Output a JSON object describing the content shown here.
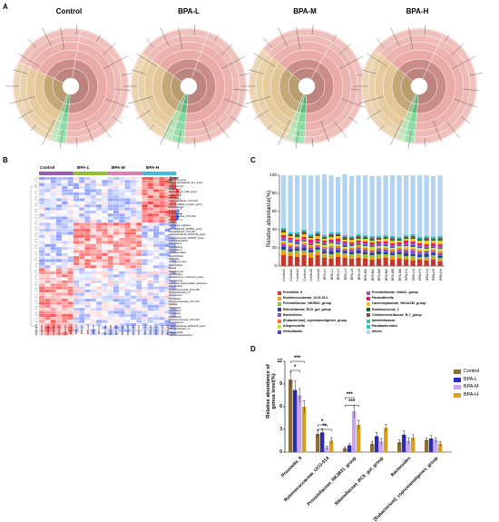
{
  "panels": {
    "a": {
      "letter": "A",
      "titles": [
        "Control",
        "BPA-L",
        "BPA-M",
        "BPA-H"
      ]
    },
    "b": {
      "letter": "B",
      "groups": [
        "Control",
        "BPA-L",
        "BPA-M",
        "BPA-H"
      ],
      "group_colors": [
        "#9b59b6",
        "#8fbf3f",
        "#e07bb5",
        "#4fb3d9"
      ],
      "legend_title": "Group",
      "scale_ticks": [
        "3",
        "2",
        "1",
        "0",
        "-1",
        "-2",
        "-3"
      ],
      "genera": [
        "NK4A214_group",
        "Christensenellaceae_R-7_group",
        "Ochrobactrum",
        "Proteus",
        "[Eubacterium]_hallii_group",
        "Holdemania",
        "Rikenella",
        "Lachnospiraceae_UCG-010",
        "[Ruminococcus]_torques_group",
        "Butyricimonas",
        "Roseburia",
        "Enterobacter",
        "Prevotellaceae_UCG-003",
        "Bilophila",
        "Proteus",
        "uncultured_organism",
        "Prevotellaceae_NK3B31_group",
        "Prevotellaceae_UCG-001",
        "Lachnospiraceae_NK4A136_group",
        "Lachnospiraceae_ND3007_group",
        "Lachnoclostridium",
        "Allobaculum",
        "Lactobacillus",
        "Prevotella_9",
        "Parabacteroides",
        "Gordonibacter",
        "Veillonella",
        "Ambiguous_taxa",
        "Haemophilus",
        "Blautia",
        "Streptococcus",
        "Lactobacillus",
        "[Eubacterium]_ventriosum_group",
        "Coprococcus",
        "uncultured_Bacteroidales_bacterium",
        "Desulfovibrio",
        "Ruminococcaceae_UCG-005",
        "Ruminiclostridium_9",
        "Peptococcus",
        "Parvibacter",
        "Ruminococcaceae_UCG-014",
        "Alistipes",
        "Odoribacter",
        "Anaerofilum",
        "Turicibacter",
        "Papillibacter",
        "Ruminococcaceae_UCG-009",
        "Anaerotignum",
        "Lachnospiraceae_NK4A136_group",
        "Ruminiclostridium_5",
        "Alloprevotella",
        "Lachnoanaerobaculum"
      ],
      "samples": [
        "Control1",
        "Control2",
        "Control3",
        "Control4",
        "Control5",
        "Control6",
        "BPA-L1",
        "BPA-L2",
        "BPA-L3",
        "BPA-L4",
        "BPA-L5",
        "BPA-L6",
        "BPA-M1",
        "BPA-M2",
        "BPA-M3",
        "BPA-M4",
        "BPA-M5",
        "BPA-M6",
        "BPA-H1",
        "BPA-H2",
        "BPA-H3",
        "BPA-H4",
        "BPA-H5",
        "BPA-H6"
      ]
    },
    "c": {
      "letter": "C",
      "ylabel": "Relative abundance(%)",
      "yticks": [
        "0",
        "20",
        "40",
        "60",
        "80",
        "100"
      ],
      "samples": [
        "Control1",
        "Control2",
        "Control3",
        "Control4",
        "Control5",
        "Control6",
        "BPA-L1",
        "BPA-L2",
        "BPA-L3",
        "BPA-L4",
        "BPA-L5",
        "BPA-L6",
        "BPA-M1",
        "BPA-M2",
        "BPA-M3",
        "BPA-M4",
        "BPA-M5",
        "BPA-M6",
        "BPA-H1",
        "BPA-H2",
        "BPA-H3",
        "BPA-H4",
        "BPA-H5",
        "BPA-H6"
      ],
      "legend": [
        {
          "name": "Prevotella_9",
          "color": "#c0392b"
        },
        {
          "name": "Prevotellaceae_Ga6A1_group",
          "color": "#9b59b6"
        },
        {
          "name": "Ruminococcaceae_UCG-014",
          "color": "#f39c12"
        },
        {
          "name": "Parasutterella",
          "color": "#e91e63"
        },
        {
          "name": "Prevotellaceae_NK3B31_group",
          "color": "#8bc34a"
        },
        {
          "name": "Lachnospiraceae_NK4A136_group",
          "color": "#f1c40f"
        },
        {
          "name": "Rikenellaceae_RC9_gut_group",
          "color": "#2c3e90"
        },
        {
          "name": "Ruminococcus_1",
          "color": "#1a5e20"
        },
        {
          "name": "Bacteroides",
          "color": "#7e57c2"
        },
        {
          "name": "Christensenellaceae_R-7_group",
          "color": "#795548"
        },
        {
          "name": "[Eubacterium]_coprostanoligenes_group",
          "color": "#ff7043"
        },
        {
          "name": "Intestinimonas",
          "color": "#4db6ac"
        },
        {
          "name": "Alloprevotella",
          "color": "#cddc39"
        },
        {
          "name": "Parabacteroides",
          "color": "#26c6da"
        },
        {
          "name": "Helicobacter",
          "color": "#3f51b5"
        },
        {
          "name": "others",
          "color": "#b3d4f0"
        }
      ]
    },
    "d": {
      "letter": "D",
      "ylabel": "Relative abundance of genus level(%)",
      "yticks": [
        "0",
        "3",
        "6",
        "9",
        "12"
      ],
      "categories": [
        "Prevotella_9",
        "Ruminococcaceae_UCG-014",
        "Prevotellaceae_NK3B31_group",
        "Rikenellaceae_RC9_gut_group",
        "Bacteroides",
        "[Eubacterium]_coprostanoligenes_group"
      ],
      "legend": [
        {
          "name": "Control",
          "color": "#8b6d3a"
        },
        {
          "name": "BPA-L",
          "color": "#2b2bb5"
        },
        {
          "name": "BPA-M",
          "color": "#c7a6e8"
        },
        {
          "name": "BPA-H",
          "color": "#d9a21e"
        }
      ],
      "sig": [
        {
          "text": "***"
        },
        {
          "text": "*"
        },
        {
          "text": "*"
        },
        {
          "text": "**"
        },
        {
          "text": "***"
        },
        {
          "text": "***"
        }
      ]
    }
  },
  "chart_data": [
    {
      "type": "bar",
      "stacked": true,
      "ylabel": "Relative abundance(%)",
      "ylim": [
        0,
        100
      ],
      "categories": [
        "Control1",
        "Control2",
        "Control3",
        "Control4",
        "Control5",
        "Control6",
        "BPA-L1",
        "BPA-L2",
        "BPA-L3",
        "BPA-L4",
        "BPA-L5",
        "BPA-L6",
        "BPA-M1",
        "BPA-M2",
        "BPA-M3",
        "BPA-M4",
        "BPA-M5",
        "BPA-M6",
        "BPA-H1",
        "BPA-H2",
        "BPA-H3",
        "BPA-H4",
        "BPA-H5",
        "BPA-H6"
      ],
      "series": [
        {
          "name": "Prevotella_9",
          "values": [
            12,
            11,
            10,
            12,
            9,
            12,
            9,
            8,
            10,
            9,
            8,
            9,
            8,
            7,
            8,
            9,
            7,
            8,
            7,
            6,
            7,
            6,
            7,
            5
          ]
        },
        {
          "name": "Ruminococcaceae_UCG-014",
          "values": [
            4,
            3,
            4,
            3,
            4,
            3,
            3,
            2,
            3,
            3,
            2,
            3,
            2,
            3,
            2,
            2,
            3,
            2,
            2,
            2,
            1,
            2,
            2,
            2
          ]
        },
        {
          "name": "Prevotellaceae_NK3B31_group",
          "values": [
            2,
            2,
            3,
            2,
            2,
            3,
            2,
            3,
            2,
            2,
            3,
            2,
            3,
            2,
            3,
            2,
            2,
            3,
            2,
            3,
            2,
            2,
            3,
            2
          ]
        },
        {
          "name": "Rikenellaceae_RC9_gut_group",
          "values": [
            3,
            2,
            2,
            3,
            2,
            2,
            2,
            3,
            2,
            2,
            2,
            3,
            2,
            2,
            3,
            2,
            2,
            2,
            3,
            2,
            2,
            3,
            2,
            2
          ]
        },
        {
          "name": "Bacteroides",
          "values": [
            3,
            3,
            2,
            3,
            3,
            2,
            3,
            4,
            3,
            2,
            3,
            3,
            3,
            2,
            3,
            3,
            2,
            3,
            3,
            4,
            3,
            3,
            2,
            3
          ]
        },
        {
          "name": "[Eubacterium]_coprostanoligenes_group",
          "values": [
            2,
            2,
            1,
            2,
            2,
            1,
            2,
            2,
            2,
            1,
            2,
            2,
            2,
            2,
            1,
            2,
            2,
            2,
            2,
            2,
            2,
            1,
            2,
            2
          ]
        },
        {
          "name": "Alloprevotella",
          "values": [
            2,
            3,
            2,
            2,
            1,
            2,
            2,
            3,
            2,
            2,
            2,
            1,
            2,
            3,
            2,
            2,
            2,
            2,
            3,
            2,
            3,
            2,
            2,
            3
          ]
        },
        {
          "name": "Helicobacter",
          "values": [
            1,
            1,
            2,
            1,
            1,
            1,
            1,
            1,
            1,
            2,
            1,
            1,
            1,
            1,
            1,
            1,
            1,
            1,
            1,
            2,
            1,
            1,
            1,
            1
          ]
        },
        {
          "name": "Prevotellaceae_Ga6A1_group",
          "values": [
            2,
            2,
            1,
            2,
            2,
            2,
            2,
            1,
            2,
            2,
            1,
            2,
            2,
            1,
            2,
            2,
            2,
            1,
            2,
            2,
            2,
            2,
            1,
            2
          ]
        },
        {
          "name": "Parasutterella",
          "values": [
            3,
            2,
            2,
            2,
            3,
            2,
            2,
            2,
            3,
            2,
            2,
            2,
            2,
            3,
            2,
            2,
            2,
            2,
            3,
            2,
            2,
            2,
            3,
            2
          ]
        },
        {
          "name": "Lachnospiraceae_NK4A136_group",
          "values": [
            3,
            2,
            3,
            3,
            2,
            3,
            2,
            3,
            3,
            2,
            3,
            2,
            3,
            2,
            2,
            3,
            3,
            2,
            2,
            3,
            3,
            4,
            3,
            4
          ]
        },
        {
          "name": "Ruminococcus_1",
          "values": [
            1,
            1,
            1,
            1,
            1,
            1,
            1,
            1,
            1,
            1,
            1,
            1,
            1,
            1,
            1,
            1,
            1,
            1,
            1,
            1,
            1,
            1,
            1,
            1
          ]
        },
        {
          "name": "Christensenellaceae_R-7_group",
          "values": [
            2,
            1,
            2,
            2,
            1,
            2,
            1,
            2,
            1,
            2,
            1,
            2,
            1,
            2,
            1,
            1,
            2,
            1,
            1,
            2,
            1,
            2,
            1,
            2
          ]
        },
        {
          "name": "Intestinimonas",
          "values": [
            1,
            1,
            1,
            1,
            1,
            1,
            1,
            1,
            1,
            1,
            1,
            1,
            1,
            1,
            1,
            1,
            1,
            1,
            1,
            1,
            1,
            1,
            1,
            1
          ]
        },
        {
          "name": "Parabacteroides",
          "values": [
            1,
            1,
            1,
            1,
            1,
            1,
            1,
            1,
            1,
            1,
            1,
            1,
            1,
            1,
            1,
            1,
            1,
            1,
            1,
            1,
            1,
            1,
            1,
            1
          ]
        },
        {
          "name": "others",
          "values": [
            58,
            63,
            63,
            60,
            65,
            62,
            67,
            63,
            61,
            67,
            66,
            65,
            66,
            66,
            66,
            66,
            67,
            68,
            66,
            65,
            68,
            67,
            67,
            67
          ]
        }
      ]
    },
    {
      "type": "bar",
      "ylabel": "Relative abundance of genus level(%)",
      "ylim": [
        0,
        12
      ],
      "categories": [
        "Prevotella_9",
        "Ruminococcaceae_UCG-014",
        "Prevotellaceae_NK3B31_group",
        "Rikenellaceae_RC9_gut_group",
        "Bacteroides",
        "[Eubacterium]_coprostanoligenes_group"
      ],
      "series": [
        {
          "name": "Control",
          "values": [
            9.6,
            2.4,
            0.5,
            1.1,
            1.3,
            1.6
          ],
          "errors": [
            1.0,
            0.5,
            0.2,
            0.3,
            0.3,
            0.3
          ]
        },
        {
          "name": "BPA-L",
          "values": [
            8.2,
            2.6,
            0.9,
            2.1,
            2.3,
            1.8
          ],
          "errors": [
            1.2,
            0.5,
            0.3,
            0.5,
            0.5,
            0.4
          ]
        },
        {
          "name": "BPA-M",
          "values": [
            7.5,
            0.6,
            5.4,
            1.4,
            1.5,
            1.6
          ],
          "errors": [
            0.9,
            0.2,
            0.8,
            0.4,
            0.4,
            0.3
          ]
        },
        {
          "name": "BPA-H",
          "values": [
            6.0,
            1.5,
            3.6,
            3.2,
            1.9,
            1.1
          ],
          "errors": [
            0.8,
            0.4,
            0.6,
            0.5,
            0.4,
            0.3
          ]
        }
      ]
    }
  ]
}
